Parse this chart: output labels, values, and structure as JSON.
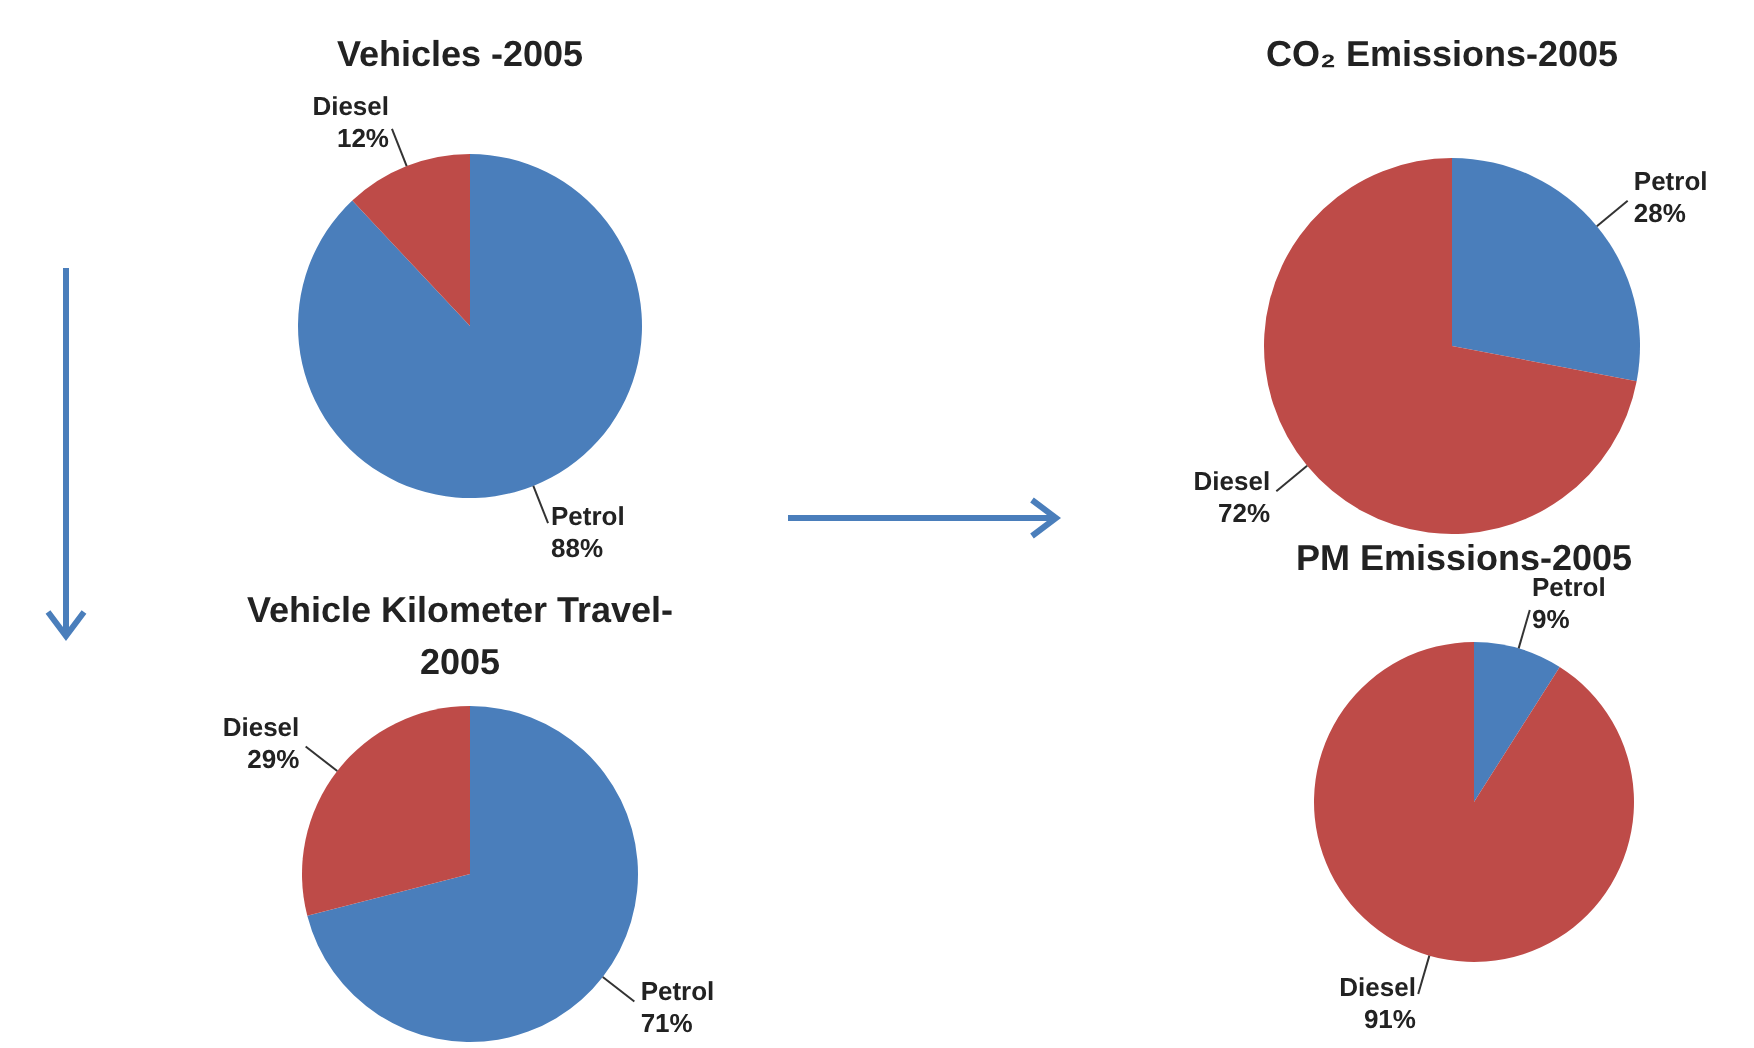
{
  "chart_data": [
    {
      "type": "pie",
      "title": "Vehicles -2005",
      "categories": [
        "Petrol",
        "Diesel"
      ],
      "values": [
        88,
        12
      ],
      "colors": [
        "#4a7ebb",
        "#be4b48"
      ],
      "value_labels": [
        "88%",
        "12%"
      ]
    },
    {
      "type": "pie",
      "title": "Vehicle Kilometer Travel-2005",
      "categories": [
        "Petrol",
        "Diesel"
      ],
      "values": [
        71,
        29
      ],
      "colors": [
        "#4a7ebb",
        "#be4b48"
      ],
      "value_labels": [
        "71%",
        "29%"
      ]
    },
    {
      "type": "pie",
      "title": "CO₂ Emissions-2005",
      "categories": [
        "Petrol",
        "Diesel"
      ],
      "values": [
        28,
        72
      ],
      "colors": [
        "#4a7ebb",
        "#be4b48"
      ],
      "value_labels": [
        "28%",
        "72%"
      ]
    },
    {
      "type": "pie",
      "title": "PM Emissions-2005",
      "categories": [
        "Petrol",
        "Diesel"
      ],
      "values": [
        9,
        91
      ],
      "colors": [
        "#4a7ebb",
        "#be4b48"
      ],
      "value_labels": [
        "9%",
        "91%"
      ]
    }
  ]
}
